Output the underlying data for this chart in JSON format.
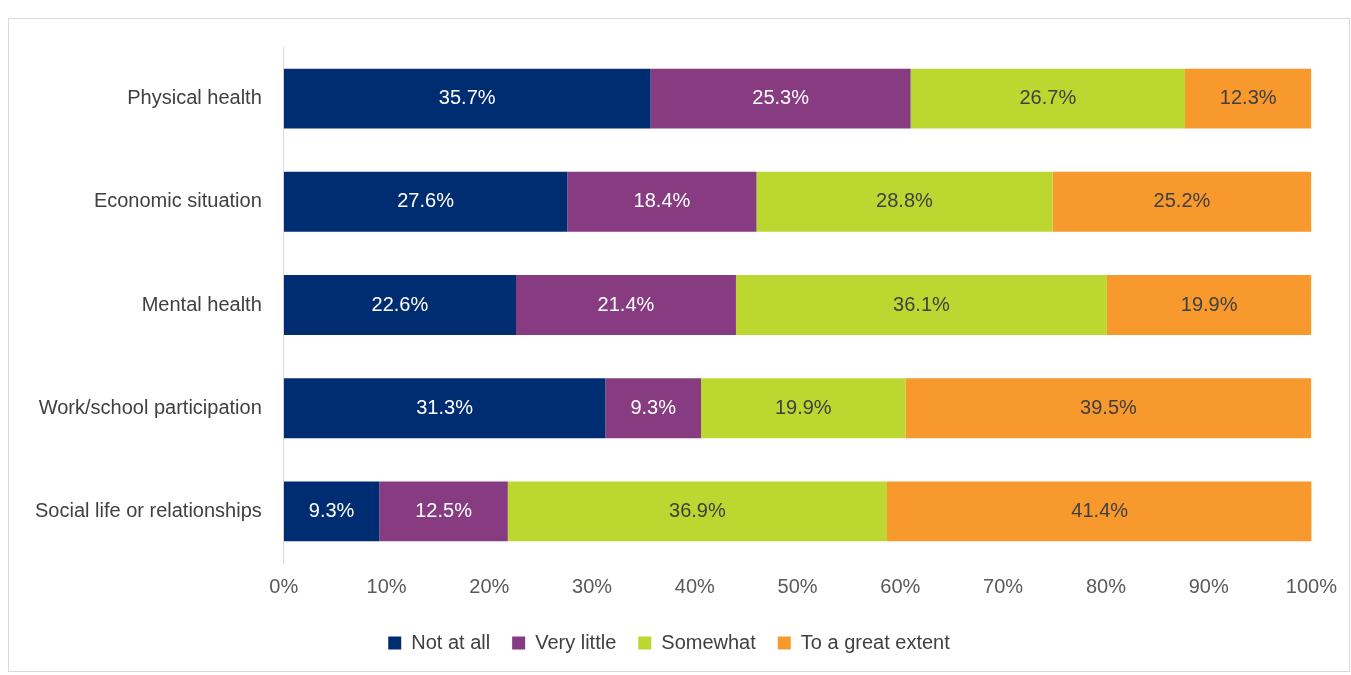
{
  "chart_data": {
    "type": "bar",
    "orientation": "horizontal",
    "stacked": true,
    "categories": [
      "Physical health",
      "Economic situation",
      "Mental health",
      "Work/school participation",
      "Social life or relationships"
    ],
    "series": [
      {
        "name": "Not at all",
        "color": "#002d72",
        "values": [
          35.7,
          27.6,
          22.6,
          31.3,
          9.3
        ],
        "value_labels": [
          "35.7%",
          "27.6%",
          "22.6%",
          "31.3%",
          "9.3%"
        ]
      },
      {
        "name": "Very little",
        "color": "#873b80",
        "values": [
          25.3,
          18.4,
          21.4,
          9.3,
          12.5
        ],
        "value_labels": [
          "25.3%",
          "18.4%",
          "21.4%",
          "9.3%",
          "12.5%"
        ]
      },
      {
        "name": "Somewhat",
        "color": "#bdd731",
        "values": [
          26.7,
          28.8,
          36.1,
          19.9,
          36.9
        ],
        "value_labels": [
          "26.7%",
          "28.8%",
          "36.1%",
          "19.9%",
          "36.9%"
        ]
      },
      {
        "name": "To a great extent",
        "color": "#f7992d",
        "values": [
          12.3,
          25.2,
          19.9,
          39.5,
          41.4
        ],
        "value_labels": [
          "12.3%",
          "25.2%",
          "19.9%",
          "39.5%",
          "41.4%"
        ]
      }
    ],
    "xlim": [
      0,
      100
    ],
    "xticks": [
      {
        "value": 0,
        "label": "0%"
      },
      {
        "value": 10,
        "label": "10%"
      },
      {
        "value": 20,
        "label": "20%"
      },
      {
        "value": 30,
        "label": "30%"
      },
      {
        "value": 40,
        "label": "40%"
      },
      {
        "value": 50,
        "label": "50%"
      },
      {
        "value": 60,
        "label": "60%"
      },
      {
        "value": 70,
        "label": "70%"
      },
      {
        "value": 80,
        "label": "80%"
      },
      {
        "value": 90,
        "label": "90%"
      },
      {
        "value": 100,
        "label": "100%"
      }
    ],
    "grid": false,
    "legend": "bottom"
  }
}
